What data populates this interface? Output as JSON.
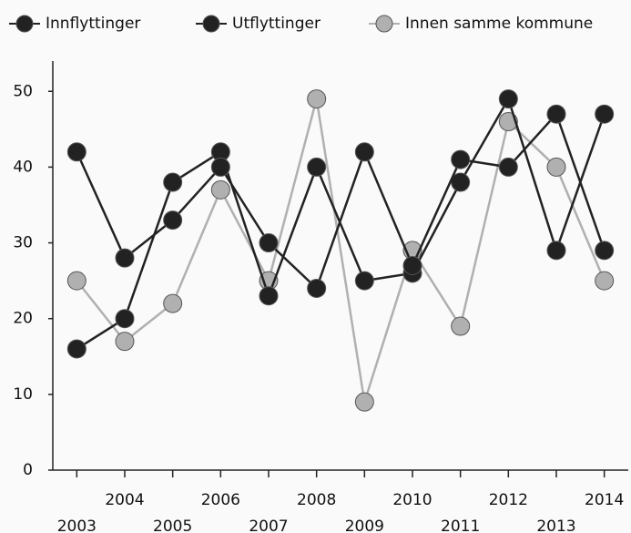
{
  "chart_data": {
    "type": "line",
    "categories": [
      "2003",
      "2004",
      "2005",
      "2006",
      "2007",
      "2008",
      "2009",
      "2010",
      "2011",
      "2012",
      "2013",
      "2014"
    ],
    "series": [
      {
        "name": "Innflyttinger",
        "color": "#222222",
        "values": [
          42,
          28,
          33,
          40,
          30,
          24,
          42,
          27,
          41,
          40,
          47,
          29
        ]
      },
      {
        "name": "Utflyttinger",
        "color": "#222222",
        "values": [
          16,
          20,
          38,
          42,
          23,
          40,
          25,
          26,
          38,
          49,
          29,
          47
        ]
      },
      {
        "name": "Innen samme kommune",
        "color": "#b0b0b0",
        "values": [
          25,
          17,
          22,
          37,
          25,
          49,
          9,
          29,
          19,
          46,
          40,
          25
        ]
      }
    ],
    "ylim": [
      0,
      54
    ],
    "yticks": [
      0,
      10,
      20,
      30,
      40,
      50
    ],
    "legend": "top"
  }
}
